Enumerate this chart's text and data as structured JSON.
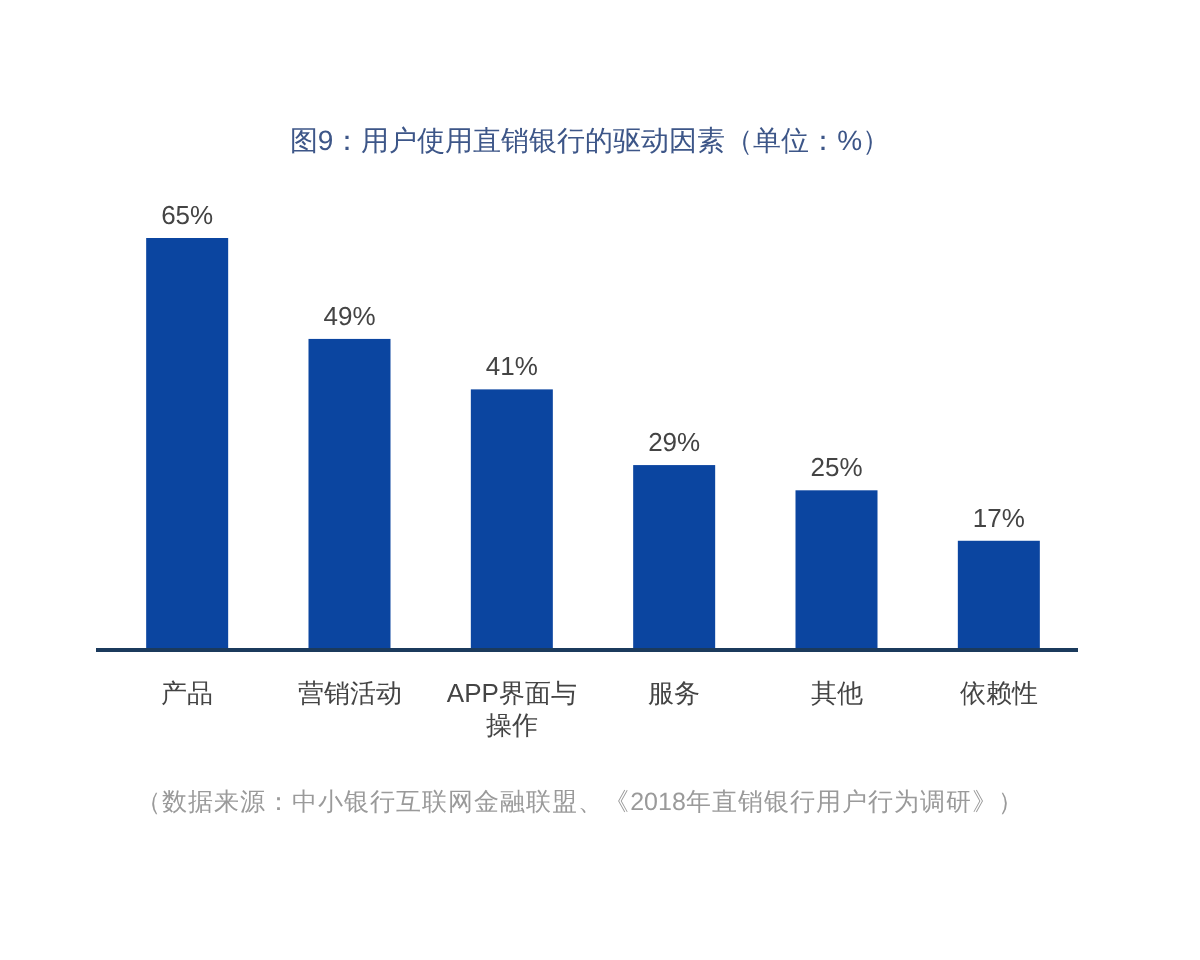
{
  "chart_data": {
    "type": "bar",
    "title": "图9：用户使用直销银行的驱动因素（单位：%）",
    "categories": [
      "产品",
      "营销活动",
      "APP界面与操作",
      "服务",
      "其他",
      "依赖性"
    ],
    "values": [
      65,
      49,
      41,
      29,
      25,
      17
    ],
    "value_labels": [
      "65%",
      "49%",
      "41%",
      "29%",
      "25%",
      "17%"
    ],
    "color": "#0b45a0",
    "annotations": [
      "（数据来源：中小银行互联网金融联盟、《2018年直销银行用户行为调研》）"
    ]
  }
}
